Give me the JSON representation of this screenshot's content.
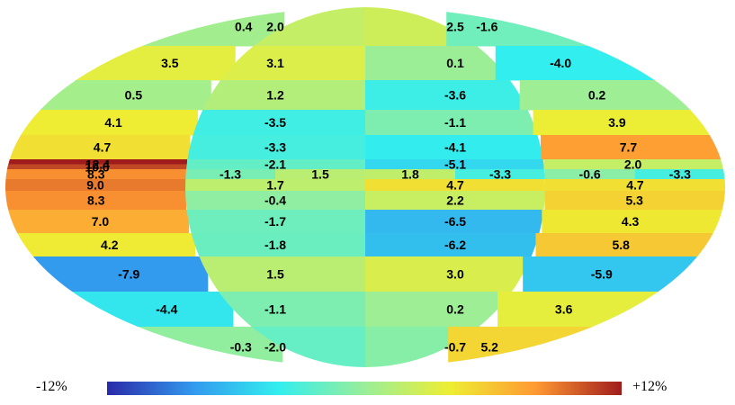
{
  "chart_data": {
    "type": "heatmap",
    "projection": "mollweide",
    "colorbar": {
      "min_label": "-12%",
      "max_label": "+12%",
      "min": -12,
      "max": 12,
      "colors": [
        "#2a2aa8",
        "#3399ee",
        "#33eeee",
        "#99ee99",
        "#eeee33",
        "#ff9933",
        "#a01c1c"
      ]
    },
    "zones": [
      {
        "name": "outer-left"
      },
      {
        "name": "inner-left"
      },
      {
        "name": "inner-right"
      },
      {
        "name": "outer-right"
      }
    ],
    "cells": [
      {
        "zone": 0,
        "row": 0,
        "value": 0.4,
        "label": "0.4"
      },
      {
        "zone": 1,
        "row": 0,
        "value": 2.0,
        "label": "2.0"
      },
      {
        "zone": 2,
        "row": 0,
        "value": 2.5,
        "label": "2.5"
      },
      {
        "zone": 3,
        "row": 0,
        "value": -1.6,
        "label": "-1.6"
      },
      {
        "zone": 0,
        "row": 1,
        "value": 3.5,
        "label": "3.5"
      },
      {
        "zone": 1,
        "row": 1,
        "value": 3.1,
        "label": "3.1"
      },
      {
        "zone": 2,
        "row": 1,
        "value": 0.1,
        "label": "0.1"
      },
      {
        "zone": 3,
        "row": 1,
        "value": -4.0,
        "label": "-4.0"
      },
      {
        "zone": 0,
        "row": 2,
        "value": 0.5,
        "label": "0.5"
      },
      {
        "zone": 1,
        "row": 2,
        "value": 1.2,
        "label": "1.2"
      },
      {
        "zone": 2,
        "row": 2,
        "value": -3.6,
        "label": "-3.6"
      },
      {
        "zone": 3,
        "row": 2,
        "value": 0.2,
        "label": "0.2"
      },
      {
        "zone": 0,
        "row": 3,
        "value": 4.1,
        "label": "4.1"
      },
      {
        "zone": 1,
        "row": 3,
        "value": -3.5,
        "label": "-3.5"
      },
      {
        "zone": 2,
        "row": 3,
        "value": -1.1,
        "label": "-1.1"
      },
      {
        "zone": 3,
        "row": 3,
        "value": 3.9,
        "label": "3.9"
      },
      {
        "zone": 0,
        "row": 4,
        "value": 4.7,
        "label": "4.7"
      },
      {
        "zone": 1,
        "row": 4,
        "value": -3.3,
        "label": "-3.3"
      },
      {
        "zone": 2,
        "row": 4,
        "value": -4.1,
        "label": "-4.1"
      },
      {
        "zone": 3,
        "row": 4,
        "value": 7.7,
        "label": "7.7"
      },
      {
        "zone": 0,
        "row": 5,
        "value": 12.4,
        "label": "12.4"
      },
      {
        "zone": 0,
        "row": 5.5,
        "value": 10.6,
        "label": "10.6"
      },
      {
        "zone": 1,
        "row": 5,
        "value": -2.1,
        "label": "-2.1"
      },
      {
        "zone": 2,
        "row": 5,
        "value": -5.1,
        "label": "-5.1"
      },
      {
        "zone": 3,
        "row": 5,
        "value": 2.0,
        "label": "2.0"
      },
      {
        "zone": 0,
        "row": 6,
        "value": 8.3,
        "label": "8.3"
      },
      {
        "zone": 1,
        "row": 6,
        "value": -1.3,
        "label": "-1.3"
      },
      {
        "zone": 1,
        "row": 6.1,
        "value": 1.5,
        "label": "1.5"
      },
      {
        "zone": 2,
        "row": 6,
        "value": 1.8,
        "label": "1.8"
      },
      {
        "zone": 2,
        "row": 6.1,
        "value": -3.3,
        "label": "-3.3"
      },
      {
        "zone": 3,
        "row": 6,
        "value": -0.6,
        "label": "-0.6"
      },
      {
        "zone": 3,
        "row": 6.1,
        "value": -3.3,
        "label": "-3.3"
      },
      {
        "zone": 0,
        "row": 7,
        "value": 9.0,
        "label": "9.0"
      },
      {
        "zone": 1,
        "row": 7,
        "value": 1.7,
        "label": "1.7"
      },
      {
        "zone": 2,
        "row": 7,
        "value": 4.7,
        "label": "4.7"
      },
      {
        "zone": 3,
        "row": 7,
        "value": 4.7,
        "label": "4.7"
      },
      {
        "zone": 0,
        "row": 8,
        "value": 8.3,
        "label": "8.3"
      },
      {
        "zone": 1,
        "row": 8,
        "value": -0.4,
        "label": "-0.4"
      },
      {
        "zone": 2,
        "row": 8,
        "value": 2.2,
        "label": "2.2"
      },
      {
        "zone": 3,
        "row": 8,
        "value": 5.3,
        "label": "5.3"
      },
      {
        "zone": 0,
        "row": 9,
        "value": 7.0,
        "label": "7.0"
      },
      {
        "zone": 1,
        "row": 9,
        "value": -1.7,
        "label": "-1.7"
      },
      {
        "zone": 2,
        "row": 9,
        "value": -6.5,
        "label": "-6.5"
      },
      {
        "zone": 3,
        "row": 9,
        "value": 4.3,
        "label": "4.3"
      },
      {
        "zone": 0,
        "row": 10,
        "value": 4.2,
        "label": "4.2"
      },
      {
        "zone": 1,
        "row": 10,
        "value": -1.8,
        "label": "-1.8"
      },
      {
        "zone": 2,
        "row": 10,
        "value": -6.2,
        "label": "-6.2"
      },
      {
        "zone": 3,
        "row": 10,
        "value": 5.8,
        "label": "5.8"
      },
      {
        "zone": 0,
        "row": 11,
        "value": -7.9,
        "label": "-7.9"
      },
      {
        "zone": 1,
        "row": 11,
        "value": 1.5,
        "label": "1.5"
      },
      {
        "zone": 2,
        "row": 11,
        "value": 3.0,
        "label": "3.0"
      },
      {
        "zone": 3,
        "row": 11,
        "value": -5.9,
        "label": "-5.9"
      },
      {
        "zone": 0,
        "row": 12,
        "value": -4.4,
        "label": "-4.4"
      },
      {
        "zone": 1,
        "row": 12,
        "value": -1.1,
        "label": "-1.1"
      },
      {
        "zone": 2,
        "row": 12,
        "value": 0.2,
        "label": "0.2"
      },
      {
        "zone": 3,
        "row": 12,
        "value": 3.6,
        "label": "3.6"
      },
      {
        "zone": 0,
        "row": 13,
        "value": -0.3,
        "label": "-0.3"
      },
      {
        "zone": 1,
        "row": 13,
        "value": -2.0,
        "label": "-2.0"
      },
      {
        "zone": 2,
        "row": 13,
        "value": -0.7,
        "label": "-0.7"
      },
      {
        "zone": 3,
        "row": 13,
        "value": 5.2,
        "label": "5.2"
      }
    ]
  }
}
